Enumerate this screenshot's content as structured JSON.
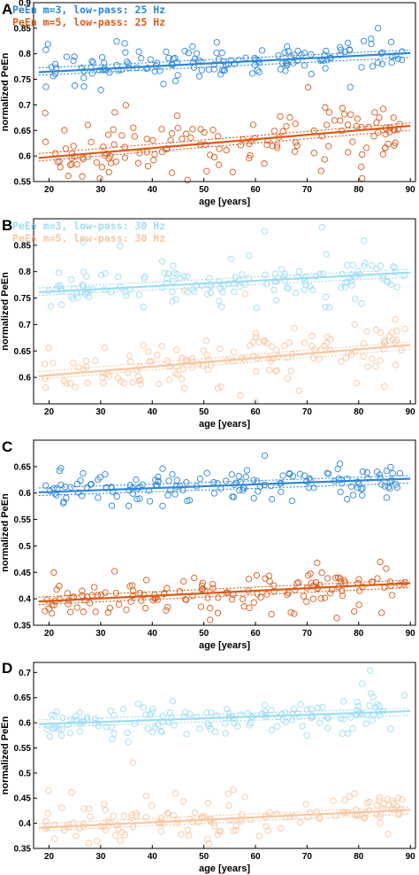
{
  "chart_data": [
    {
      "panel": "A",
      "type": "scatter",
      "xlabel": "age [years]",
      "ylabel": "normalized PeEn",
      "xlim": [
        17,
        91
      ],
      "ylim": [
        0.55,
        0.9
      ],
      "xticks": [
        20,
        30,
        40,
        50,
        60,
        70,
        80,
        90
      ],
      "yticks": [
        0.55,
        0.6,
        0.65,
        0.7,
        0.75,
        0.8,
        0.85,
        0.9
      ],
      "legend": "top-left",
      "series": [
        {
          "name": "PeEn m=3, low-pass: 25 Hz",
          "color": "#2e86d6",
          "fit": [
            0.765,
            0.00052
          ],
          "center": 0.787,
          "spread": 0.02,
          "outlier_low": 0.72,
          "outlier_high": 0.845
        },
        {
          "name": "PeEn m=5, low-pass: 25 Hz",
          "color": "#d95a1a",
          "fit": [
            0.598,
            0.00087
          ],
          "center": 0.64,
          "spread": 0.027,
          "outlier_low": 0.555,
          "outlier_high": 0.71
        }
      ]
    },
    {
      "panel": "B",
      "type": "scatter",
      "xlabel": "age [years]",
      "ylabel": "normalized PeEn",
      "xlim": [
        17,
        91
      ],
      "ylim": [
        0.55,
        0.9
      ],
      "xticks": [
        20,
        30,
        40,
        50,
        60,
        70,
        80,
        90
      ],
      "yticks": [
        0.6,
        0.65,
        0.7,
        0.75,
        0.8,
        0.85
      ],
      "legend": "top-left",
      "series": [
        {
          "name": "PeEn m=3, low-pass: 30 Hz",
          "color": "#9fdcf2",
          "fit": [
            0.762,
            0.00052
          ],
          "center": 0.786,
          "spread": 0.02,
          "outlier_low": 0.73,
          "outlier_high": 0.885
        },
        {
          "name": "PeEn m=5, low-pass: 30 Hz",
          "color": "#f8c6a1",
          "fit": [
            0.604,
            0.00082
          ],
          "center": 0.645,
          "spread": 0.027,
          "outlier_low": 0.575,
          "outlier_high": 0.77
        }
      ]
    },
    {
      "panel": "C",
      "type": "scatter",
      "xlabel": "age [years]",
      "ylabel": "normalized PeEn",
      "xlim": [
        17,
        91
      ],
      "ylim": [
        0.35,
        0.7
      ],
      "xticks": [
        20,
        30,
        40,
        50,
        60,
        70,
        80,
        90
      ],
      "yticks": [
        0.35,
        0.4,
        0.45,
        0.5,
        0.55,
        0.6,
        0.65
      ],
      "legend": "none",
      "series": [
        {
          "name": "",
          "color": "#2e86d6",
          "fit": [
            0.602,
            0.00036
          ],
          "center": 0.618,
          "spread": 0.017,
          "outlier_low": 0.57,
          "outlier_high": 0.66
        },
        {
          "name": "",
          "color": "#d95a1a",
          "fit": [
            0.396,
            0.00048
          ],
          "center": 0.42,
          "spread": 0.02,
          "outlier_low": 0.36,
          "outlier_high": 0.485
        }
      ]
    },
    {
      "panel": "D",
      "type": "scatter",
      "xlabel": "age [years]",
      "ylabel": "normalized PeEn",
      "xlim": [
        17,
        91
      ],
      "ylim": [
        0.35,
        0.72
      ],
      "xticks": [
        20,
        30,
        40,
        50,
        60,
        70,
        80,
        90
      ],
      "yticks": [
        0.35,
        0.4,
        0.45,
        0.5,
        0.55,
        0.6,
        0.65,
        0.7
      ],
      "legend": "none",
      "series": [
        {
          "name": "",
          "color": "#9fdcf2",
          "fit": [
            0.598,
            0.00036
          ],
          "center": 0.617,
          "spread": 0.018,
          "outlier_low": 0.575,
          "outlier_high": 0.705
        },
        {
          "name": "",
          "color": "#f8c6a1",
          "fit": [
            0.392,
            0.0005
          ],
          "center": 0.418,
          "spread": 0.022,
          "outlier_low": 0.36,
          "outlier_high": 0.525
        }
      ]
    }
  ]
}
